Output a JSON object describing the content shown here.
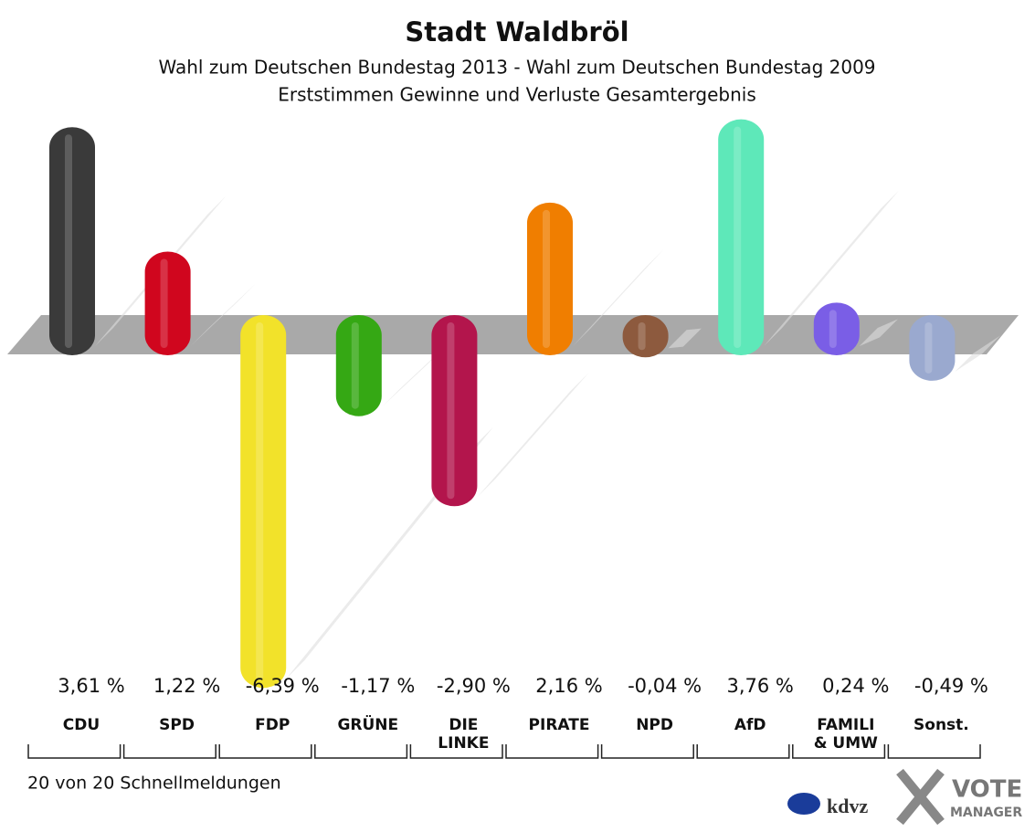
{
  "chart_data": {
    "type": "bar",
    "title": "Stadt Waldbröl",
    "subtitle": "Wahl zum Deutschen Bundestag 2013 - Wahl zum Deutschen Bundestag 2009",
    "subtitle2": "Erststimmen Gewinne und Verluste Gesamtergebnis",
    "categories": [
      "CDU",
      "SPD",
      "FDP",
      "GRÜNE",
      "DIE LINKE",
      "PIRATE",
      "NPD",
      "AfD",
      "FAMILI & UMW",
      "Sonst."
    ],
    "values": [
      3.61,
      1.22,
      -6.39,
      -1.17,
      -2.9,
      2.16,
      -0.04,
      3.76,
      0.24,
      -0.49
    ],
    "value_labels": [
      "3,61 %",
      "1,22 %",
      "-6,39 %",
      "-1,17 %",
      "-2,90 %",
      "2,16 %",
      "-0,04 %",
      "3,76 %",
      "0,24 %",
      "-0,49 %"
    ],
    "colors": [
      "#3a3a3a",
      "#d0061e",
      "#f2e22a",
      "#35a814",
      "#b3154c",
      "#f07e00",
      "#8d5a3e",
      "#5ee8b9",
      "#7a5ee6",
      "#9aa9cf"
    ],
    "footer": "20 von 20 Schnellmeldungen",
    "logo1": "kdvz",
    "logo2": "VOTE",
    "logo3": "MANAGER"
  }
}
